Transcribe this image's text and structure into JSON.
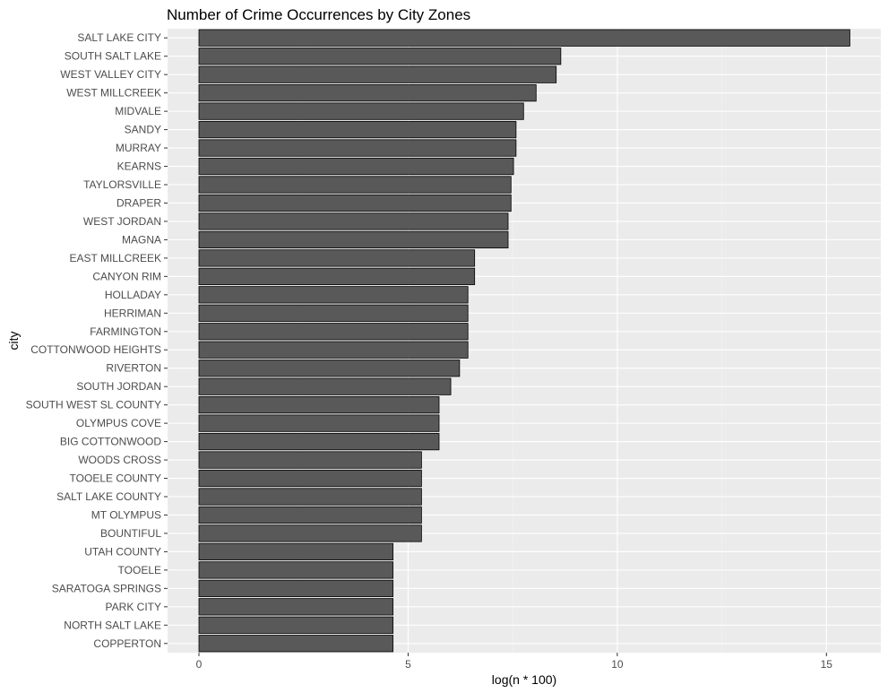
{
  "chart_data": {
    "type": "bar",
    "orientation": "horizontal",
    "title": "Number of Crime Occurrences by City Zones",
    "xlabel": "log(n * 100)",
    "ylabel": "city",
    "xlim": [
      -0.75,
      16.3
    ],
    "x_ticks": [
      0,
      5,
      10,
      15
    ],
    "x_tick_labels": [
      "0",
      "5",
      "10",
      "15"
    ],
    "grid": true,
    "legend": "none",
    "categories": [
      "SALT LAKE CITY",
      "SOUTH SALT LAKE",
      "WEST VALLEY CITY",
      "WEST MILLCREEK",
      "MIDVALE",
      "SANDY",
      "MURRAY",
      "KEARNS",
      "TAYLORSVILLE",
      "DRAPER",
      "WEST JORDAN",
      "MAGNA",
      "EAST MILLCREEK",
      "CANYON RIM",
      "HOLLADAY",
      "HERRIMAN",
      "FARMINGTON",
      "COTTONWOOD HEIGHTS",
      "RIVERTON",
      "SOUTH JORDAN",
      "SOUTH WEST SL COUNTY",
      "OLYMPUS COVE",
      "BIG COTTONWOOD",
      "WOODS CROSS",
      "TOOELE COUNTY",
      "SALT LAKE COUNTY",
      "MT OLYMPUS",
      "BOUNTIFUL",
      "UTAH COUNTY",
      "TOOELE",
      "SARATOGA SPRINGS",
      "PARK CITY",
      "NORTH SALT LAKE",
      "COPPERTON"
    ],
    "values": [
      15.56,
      8.65,
      8.54,
      8.06,
      7.76,
      7.58,
      7.58,
      7.52,
      7.46,
      7.46,
      7.39,
      7.39,
      6.59,
      6.59,
      6.43,
      6.43,
      6.43,
      6.43,
      6.23,
      6.02,
      5.74,
      5.74,
      5.74,
      5.32,
      5.32,
      5.32,
      5.32,
      5.32,
      4.64,
      4.64,
      4.64,
      4.64,
      4.64,
      4.64
    ],
    "colors": {
      "panel": "#ebebeb",
      "grid_major": "#ffffff",
      "grid_minor": "#f5f5f5",
      "bar_fill": "#595959",
      "bar_stroke": "#000000",
      "tick": "#333333"
    }
  }
}
